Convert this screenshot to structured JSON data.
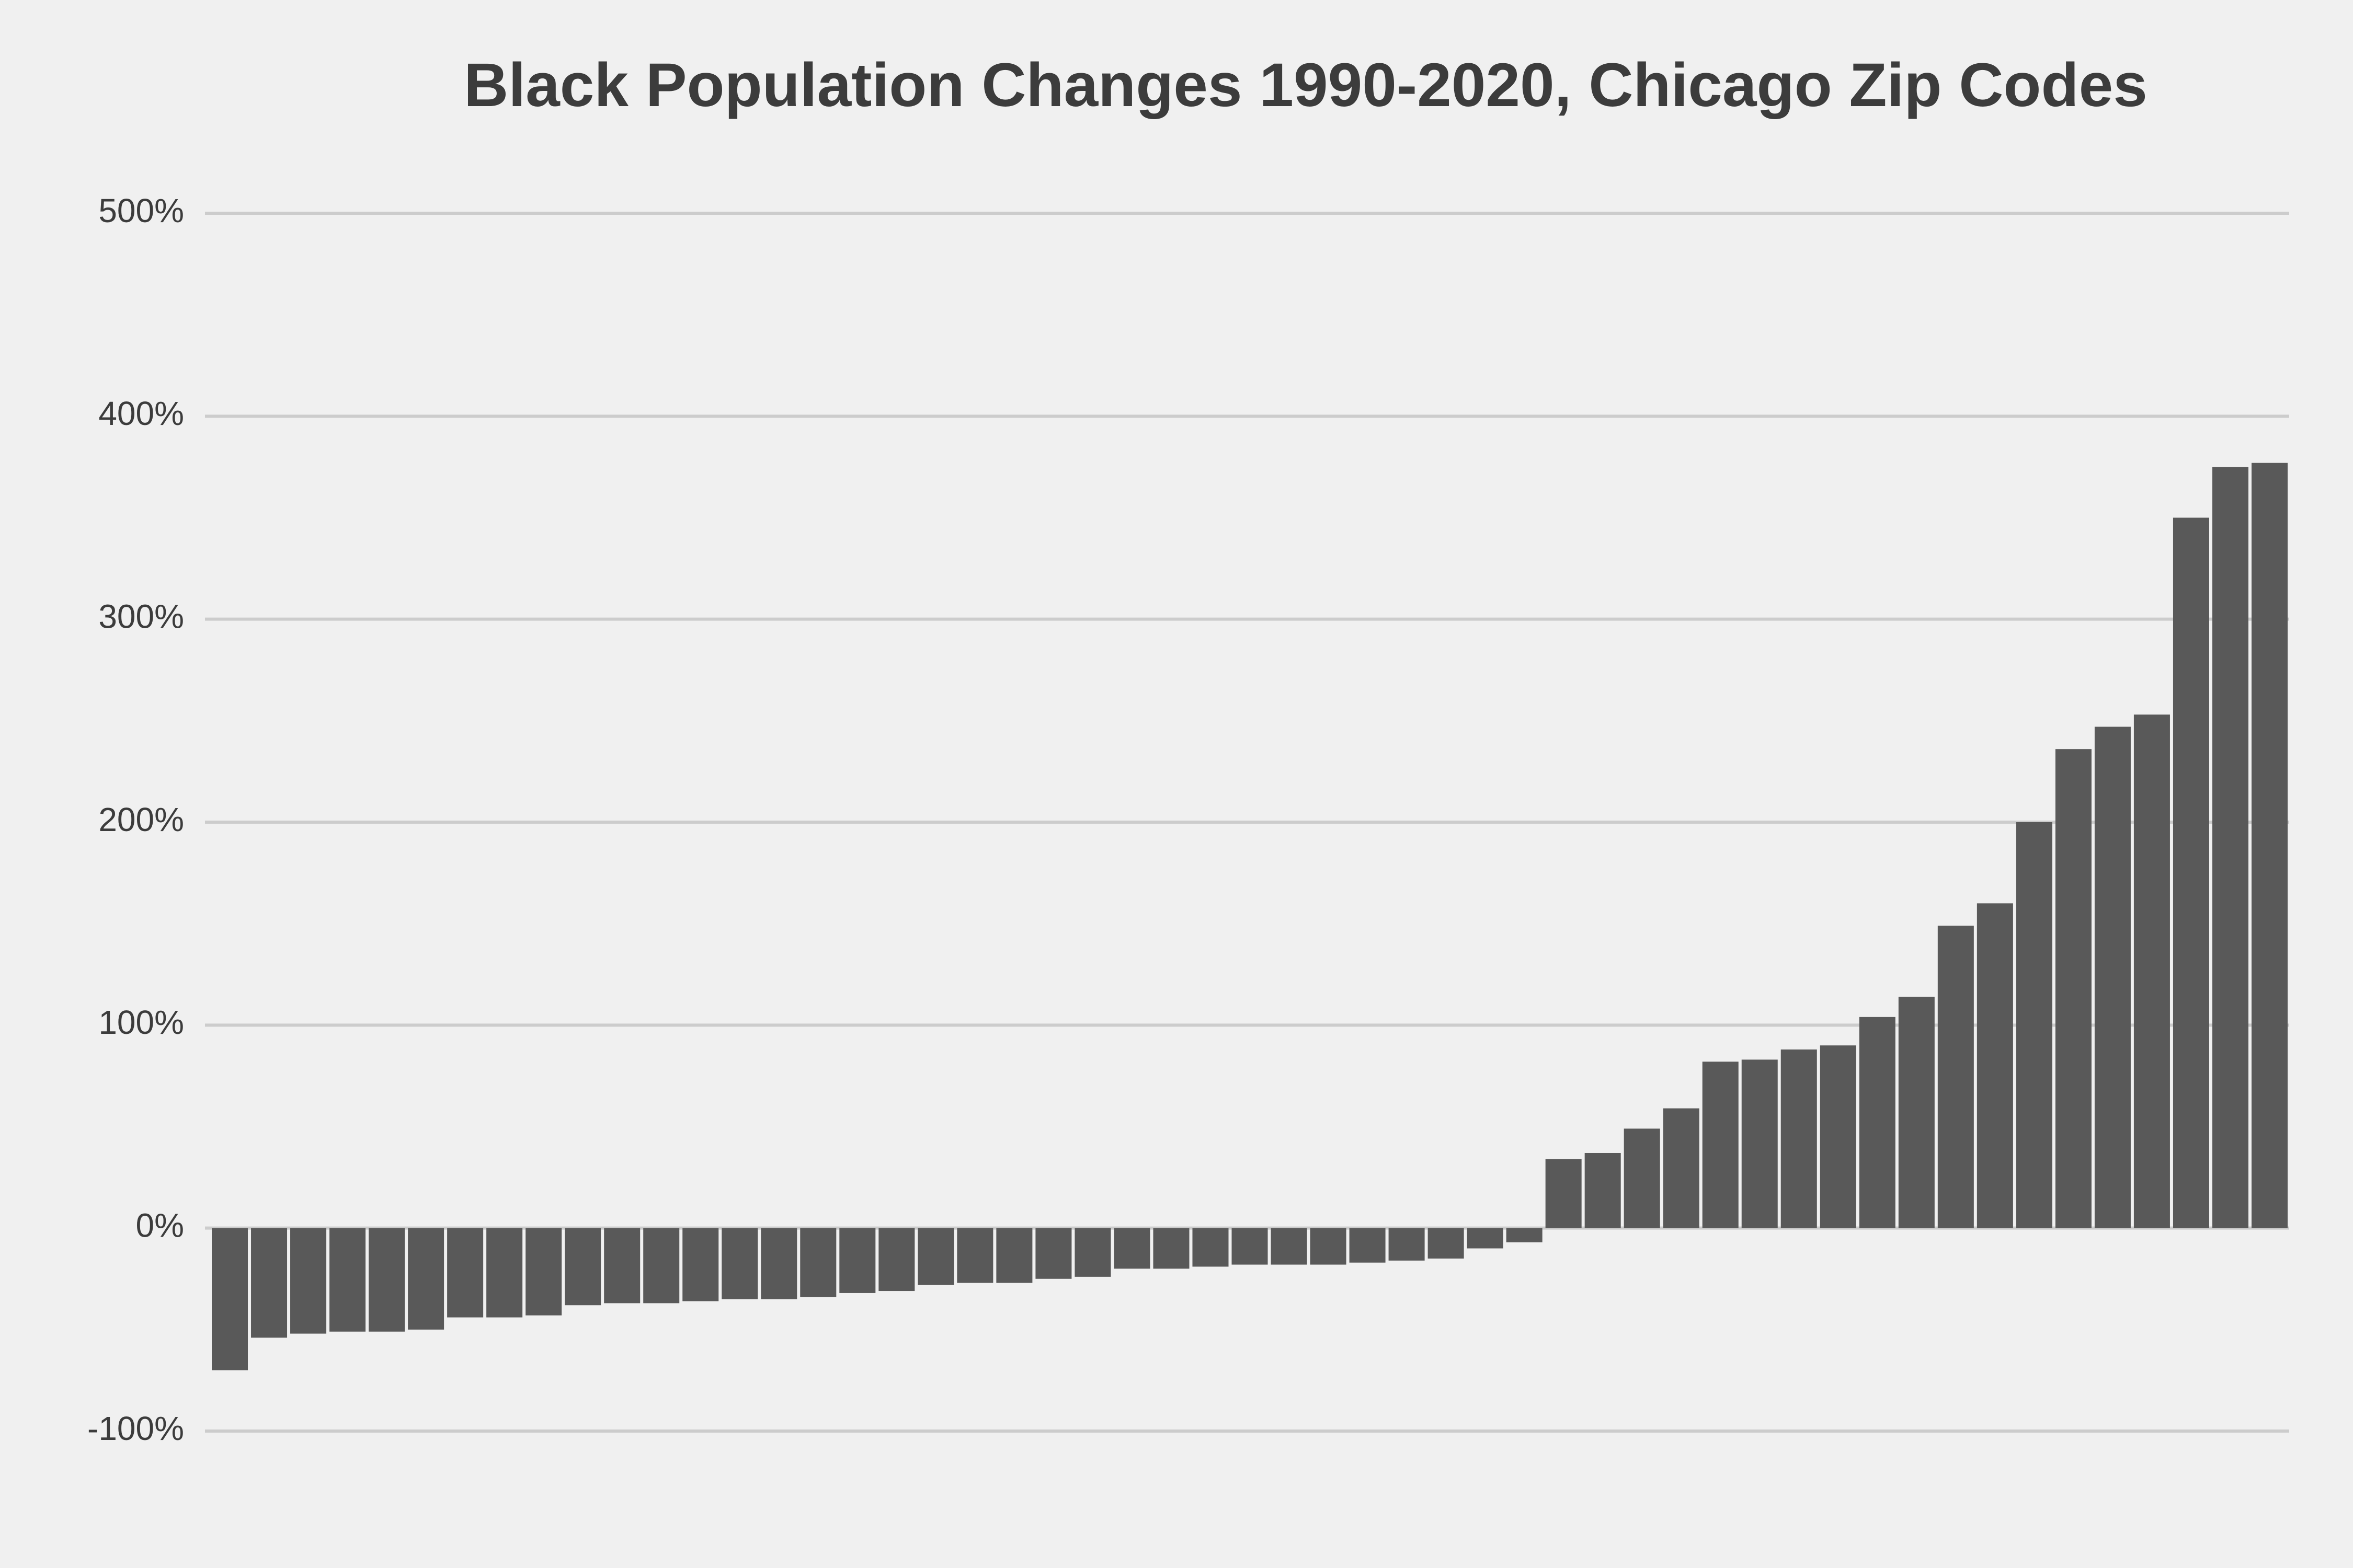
{
  "chart_data": {
    "type": "bar",
    "title": "Black Population Changes 1990-2020, Chicago Zip Codes",
    "values": [
      -70,
      -54,
      -52,
      -51,
      -51,
      -50,
      -44,
      -44,
      -43,
      -38,
      -37,
      -37,
      -36,
      -35,
      -35,
      -34,
      -32,
      -31,
      -28,
      -27,
      -27,
      -25,
      -24,
      -20,
      -20,
      -19,
      -18,
      -18,
      -18,
      -17,
      -16,
      -15,
      -10,
      -7,
      34,
      37,
      49,
      59,
      82,
      83,
      88,
      90,
      104,
      114,
      149,
      160,
      200,
      236,
      247,
      253,
      350,
      375,
      377
    ],
    "color": "#595959",
    "ylim": [
      -100,
      500
    ],
    "yticks": [
      {
        "value": -100,
        "label": "-100%"
      },
      {
        "value": 0,
        "label": "0%"
      },
      {
        "value": 100,
        "label": "100%"
      },
      {
        "value": 200,
        "label": "200%"
      },
      {
        "value": 300,
        "label": "300%"
      },
      {
        "value": 400,
        "label": "400%"
      },
      {
        "value": 500,
        "label": "500%"
      }
    ],
    "grid": true
  }
}
